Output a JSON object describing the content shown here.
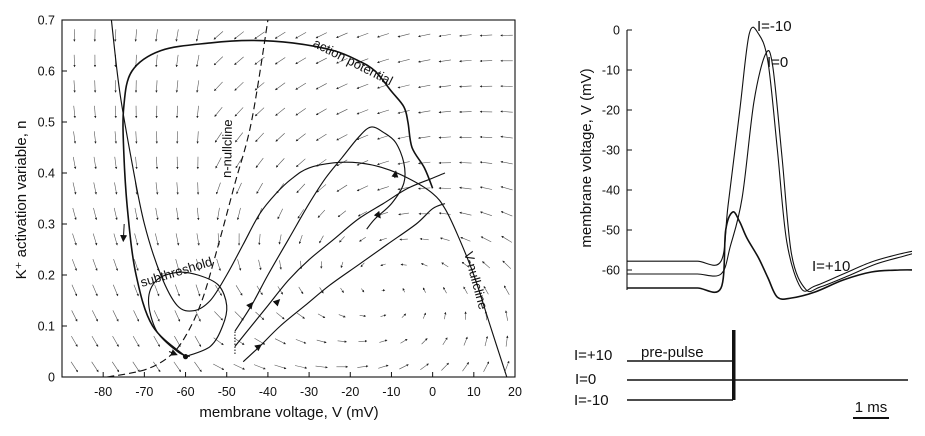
{
  "chart_data": [
    {
      "type": "line",
      "subtype": "phase-plane",
      "title": "",
      "xlabel": "membrane voltage, V (mV)",
      "ylabel": "K⁺ activation variable, n",
      "xlim": [
        -90,
        20
      ],
      "ylim": [
        0,
        0.7
      ],
      "xticks": [
        -80,
        -70,
        -60,
        -50,
        -40,
        -30,
        -20,
        -10,
        0,
        10,
        20
      ],
      "xtick_labels": [
        "-80",
        "-70",
        "-60",
        "-50",
        "-40",
        "-30",
        "-20",
        "-10",
        "0",
        "10",
        "20"
      ],
      "yticks": [
        0,
        0.1,
        0.2,
        0.3,
        0.4,
        0.5,
        0.6,
        0.7
      ],
      "ytick_labels": [
        "0",
        "0.1",
        "0.2",
        "0.3",
        "0.4",
        "0.5",
        "0.6",
        "0.7"
      ],
      "grid": false,
      "annotations": [
        "action potential",
        "subthreshold",
        "n-nullcline",
        "V-nullcline"
      ],
      "series": [
        {
          "style": "dashed",
          "x": [
            -79,
            -70,
            -64,
            -60,
            -56,
            -52,
            -48,
            -44,
            -40
          ],
          "y": [
            0.0,
            0.014,
            0.04,
            0.08,
            0.15,
            0.26,
            0.38,
            0.5,
            0.7
          ]
        },
        {
          "style": "solid",
          "x": [
            -78,
            -76,
            -73,
            -70,
            -66,
            -62,
            -58,
            -54,
            -50,
            -46,
            -42,
            -38,
            -34,
            -30,
            -24,
            -18,
            -12,
            -6,
            0,
            3,
            6,
            10,
            14,
            18
          ],
          "y": [
            0.7,
            0.56,
            0.42,
            0.3,
            0.2,
            0.14,
            0.13,
            0.15,
            0.2,
            0.26,
            0.32,
            0.36,
            0.39,
            0.41,
            0.42,
            0.42,
            0.41,
            0.39,
            0.36,
            0.33,
            0.28,
            0.2,
            0.1,
            0.0
          ]
        },
        {
          "style": "solid",
          "x": [
            -60,
            -68,
            -72,
            -74,
            -75,
            -75,
            -73,
            -66,
            -54,
            -44,
            -34,
            -24,
            -18,
            -14,
            -10,
            -7,
            -6,
            -5,
            -2,
            0
          ],
          "y": [
            0.04,
            0.1,
            0.2,
            0.32,
            0.44,
            0.53,
            0.6,
            0.64,
            0.655,
            0.66,
            0.655,
            0.64,
            0.62,
            0.6,
            0.56,
            0.53,
            0.5,
            0.45,
            0.41,
            0.37
          ]
        },
        {
          "style": "solid",
          "x": [
            -60,
            -54,
            -51,
            -50,
            -52,
            -57,
            -62,
            -67,
            -69,
            -67,
            -62,
            -59
          ],
          "y": [
            0.04,
            0.06,
            0.1,
            0.14,
            0.18,
            0.2,
            0.205,
            0.19,
            0.15,
            0.09,
            0.05,
            0.04
          ]
        },
        {
          "style": "solid",
          "x": [
            -48,
            -44,
            -40,
            -35,
            -30,
            -26,
            -22,
            -18,
            -15,
            -12,
            -9,
            -7,
            -7,
            -10,
            -14,
            -16
          ],
          "y": [
            0.09,
            0.14,
            0.2,
            0.27,
            0.34,
            0.39,
            0.43,
            0.47,
            0.49,
            0.48,
            0.46,
            0.42,
            0.38,
            0.34,
            0.31,
            0.29
          ]
        },
        {
          "style": "solid",
          "x": [
            -48,
            -44,
            -40,
            -35,
            -30,
            -24,
            -18,
            -12,
            -6,
            0,
            3
          ],
          "y": [
            0.06,
            0.1,
            0.14,
            0.19,
            0.23,
            0.27,
            0.31,
            0.34,
            0.37,
            0.39,
            0.4
          ]
        },
        {
          "style": "solid",
          "x": [
            -46,
            -42,
            -37,
            -31,
            -25,
            -18,
            -11,
            -4,
            0,
            3
          ],
          "y": [
            0.03,
            0.06,
            0.1,
            0.14,
            0.18,
            0.22,
            0.26,
            0.3,
            0.33,
            0.34
          ]
        }
      ]
    },
    {
      "type": "line",
      "title": "",
      "xlabel": "",
      "ylabel": "membrane voltage, V (mV)",
      "ylim": [
        -65,
        0
      ],
      "yticks": [
        0,
        -10,
        -20,
        -30,
        -40,
        -50,
        -60
      ],
      "ytick_labels": [
        "0",
        "-10",
        "-20",
        "-30",
        "-40",
        "-50",
        "-60"
      ],
      "scale_bar": "1 ms",
      "grid": false,
      "series": [
        {
          "name": "I=-10",
          "t": [
            0,
            0.5,
            1.0,
            1.5,
            2.0,
            2.15,
            2.4,
            2.6,
            2.8,
            3.0,
            3.2,
            3.4,
            3.7,
            4.0,
            4.6,
            5.2,
            5.8,
            6.2
          ],
          "v": [
            -57.8,
            -57.8,
            -57.8,
            -57.8,
            -57.8,
            -44,
            -20,
            -1,
            -1,
            -8,
            -30,
            -53,
            -64.5,
            -64,
            -61,
            -58,
            -56,
            -55
          ]
        },
        {
          "name": "I=0",
          "t": [
            0,
            0.5,
            1.0,
            1.5,
            2.0,
            2.2,
            2.45,
            2.7,
            2.95,
            3.1,
            3.3,
            3.5,
            3.8,
            4.1,
            4.7,
            5.3,
            5.9,
            6.2
          ],
          "v": [
            -61,
            -61,
            -61,
            -61,
            -61,
            -54,
            -42,
            -18,
            -6,
            -9,
            -32,
            -56,
            -64.8,
            -64.3,
            -61.5,
            -58.5,
            -56.5,
            -55.5
          ]
        },
        {
          "name": "I=+10",
          "t": [
            0,
            0.5,
            1.0,
            1.5,
            2.0,
            2.1,
            2.25,
            2.4,
            2.55,
            2.8,
            3.0,
            3.2,
            3.5,
            4.0,
            4.6,
            5.2,
            5.8,
            6.2
          ],
          "v": [
            -64.5,
            -64.5,
            -64.5,
            -64.5,
            -64.5,
            -50,
            -45.5,
            -48,
            -52,
            -57,
            -62,
            -66.8,
            -67,
            -65.5,
            -62.5,
            -60.5,
            -60,
            -60
          ]
        }
      ]
    },
    {
      "type": "line",
      "title": "pre-pulse",
      "series_labels": [
        "I=+10",
        "I=0",
        "I=-10"
      ],
      "levels": [
        10,
        0,
        -10
      ]
    }
  ]
}
